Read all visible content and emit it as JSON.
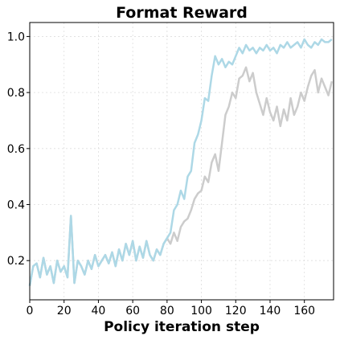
{
  "chart_data": {
    "type": "line",
    "title": "Format Reward",
    "xlabel": "Policy iteration step",
    "x": [
      0,
      2,
      4,
      6,
      8,
      10,
      12,
      14,
      16,
      18,
      20,
      22,
      24,
      26,
      28,
      30,
      32,
      34,
      36,
      38,
      40,
      42,
      44,
      46,
      48,
      50,
      52,
      54,
      56,
      58,
      60,
      62,
      64,
      66,
      68,
      70,
      72,
      74,
      76,
      78,
      80,
      82,
      84,
      86,
      88,
      90,
      92,
      94,
      96,
      98,
      100,
      102,
      104,
      106,
      108,
      110,
      112,
      114,
      116,
      118,
      120,
      122,
      124,
      126,
      128,
      130,
      132,
      134,
      136,
      138,
      140,
      142,
      144,
      146,
      148,
      150,
      152,
      154,
      156,
      158,
      160,
      162,
      164,
      166,
      168,
      170,
      172,
      174,
      176
    ],
    "series": [
      {
        "color": "#cccccc",
        "values": [
          0.11,
          0.18,
          0.19,
          0.14,
          0.21,
          0.15,
          0.18,
          0.12,
          0.2,
          0.16,
          0.18,
          0.14,
          0.36,
          0.12,
          0.2,
          0.18,
          0.15,
          0.2,
          0.17,
          0.22,
          0.18,
          0.2,
          0.22,
          0.19,
          0.23,
          0.18,
          0.24,
          0.2,
          0.26,
          0.22,
          0.27,
          0.2,
          0.25,
          0.21,
          0.27,
          0.22,
          0.2,
          0.24,
          0.22,
          0.26,
          0.28,
          0.26,
          0.3,
          0.27,
          0.32,
          0.34,
          0.35,
          0.38,
          0.42,
          0.44,
          0.45,
          0.5,
          0.48,
          0.55,
          0.58,
          0.52,
          0.62,
          0.72,
          0.75,
          0.8,
          0.78,
          0.85,
          0.86,
          0.89,
          0.84,
          0.87,
          0.8,
          0.76,
          0.72,
          0.78,
          0.73,
          0.7,
          0.75,
          0.68,
          0.74,
          0.7,
          0.78,
          0.72,
          0.75,
          0.8,
          0.77,
          0.82,
          0.86,
          0.88,
          0.8,
          0.85,
          0.82,
          0.79,
          0.84
        ]
      },
      {
        "color": "#add8e6",
        "values": [
          0.11,
          0.18,
          0.19,
          0.14,
          0.21,
          0.15,
          0.18,
          0.12,
          0.2,
          0.16,
          0.18,
          0.14,
          0.36,
          0.12,
          0.2,
          0.18,
          0.15,
          0.2,
          0.17,
          0.22,
          0.18,
          0.2,
          0.22,
          0.19,
          0.23,
          0.18,
          0.24,
          0.2,
          0.26,
          0.22,
          0.27,
          0.2,
          0.25,
          0.21,
          0.27,
          0.22,
          0.2,
          0.24,
          0.22,
          0.26,
          0.28,
          0.3,
          0.38,
          0.4,
          0.45,
          0.42,
          0.5,
          0.52,
          0.62,
          0.65,
          0.7,
          0.78,
          0.77,
          0.86,
          0.93,
          0.9,
          0.92,
          0.89,
          0.91,
          0.9,
          0.93,
          0.96,
          0.94,
          0.97,
          0.95,
          0.96,
          0.94,
          0.96,
          0.95,
          0.97,
          0.95,
          0.96,
          0.94,
          0.97,
          0.96,
          0.98,
          0.96,
          0.97,
          0.98,
          0.96,
          0.99,
          0.97,
          0.96,
          0.98,
          0.97,
          0.99,
          0.98,
          0.98,
          0.99
        ]
      }
    ],
    "xlim": [
      0,
      177
    ],
    "xticks": [
      0,
      20,
      40,
      60,
      80,
      100,
      120,
      140,
      160
    ],
    "ylim": [
      0.06,
      1.05
    ],
    "yticks": [
      0.2,
      0.4,
      0.6,
      0.8,
      {
        "value": 1,
        "label": "1.0"
      }
    ],
    "grid": true
  }
}
